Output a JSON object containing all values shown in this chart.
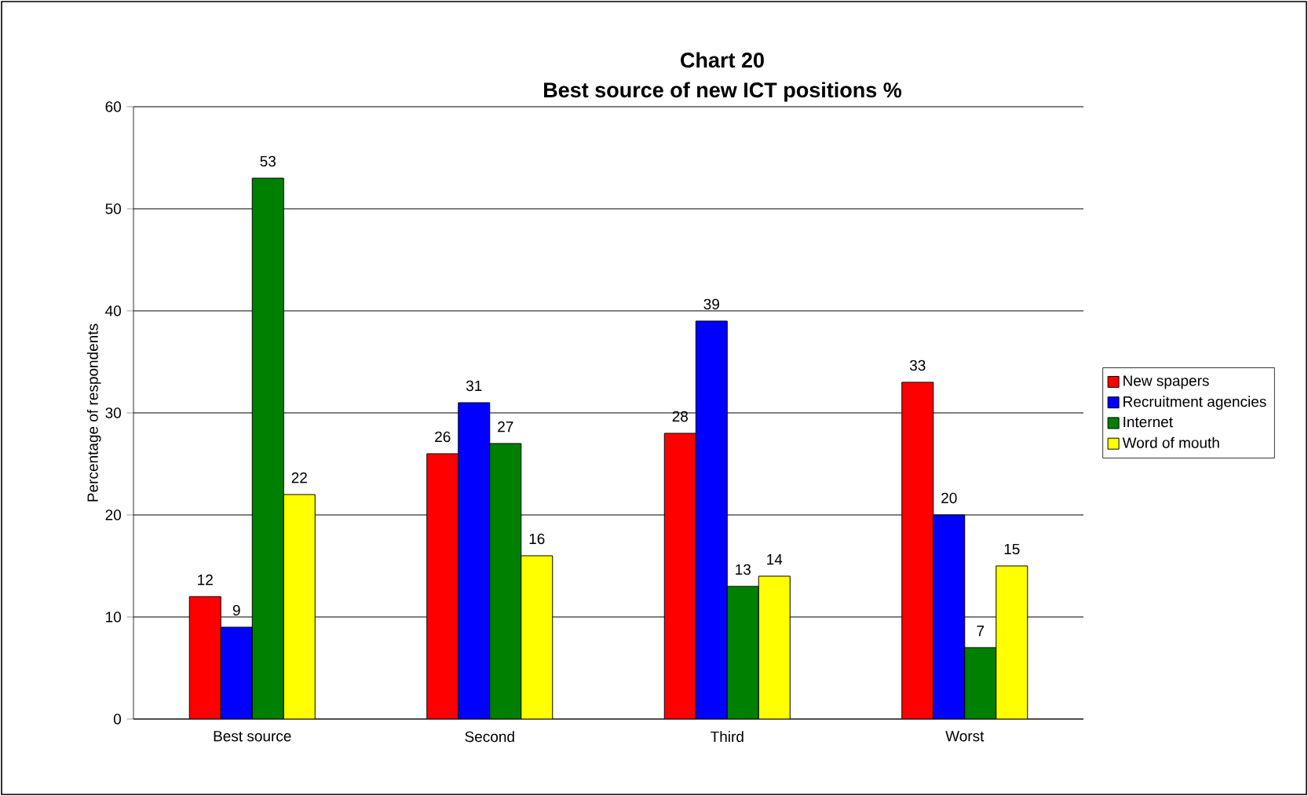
{
  "chart_data": {
    "type": "bar",
    "title": "Chart 20\nBest source of new ICT positions %",
    "ylabel": "Percentage of respondents",
    "categories": [
      "Best source",
      "Second",
      "Third",
      "Worst"
    ],
    "series": [
      {
        "name": "New spapers",
        "color": "#ff0000",
        "values": [
          12,
          26,
          28,
          33
        ]
      },
      {
        "name": "Recruitment agencies",
        "color": "#0000ff",
        "values": [
          9,
          31,
          39,
          20
        ]
      },
      {
        "name": "Internet",
        "color": "#008000",
        "values": [
          53,
          27,
          13,
          7
        ]
      },
      {
        "name": "Word of mouth",
        "color": "#ffff00",
        "values": [
          22,
          16,
          14,
          15
        ]
      }
    ],
    "ylim": [
      0,
      60
    ],
    "yticks": [
      0,
      10,
      20,
      30,
      40,
      50,
      60
    ],
    "grid": "y",
    "legend": "right",
    "data_labels": true
  }
}
